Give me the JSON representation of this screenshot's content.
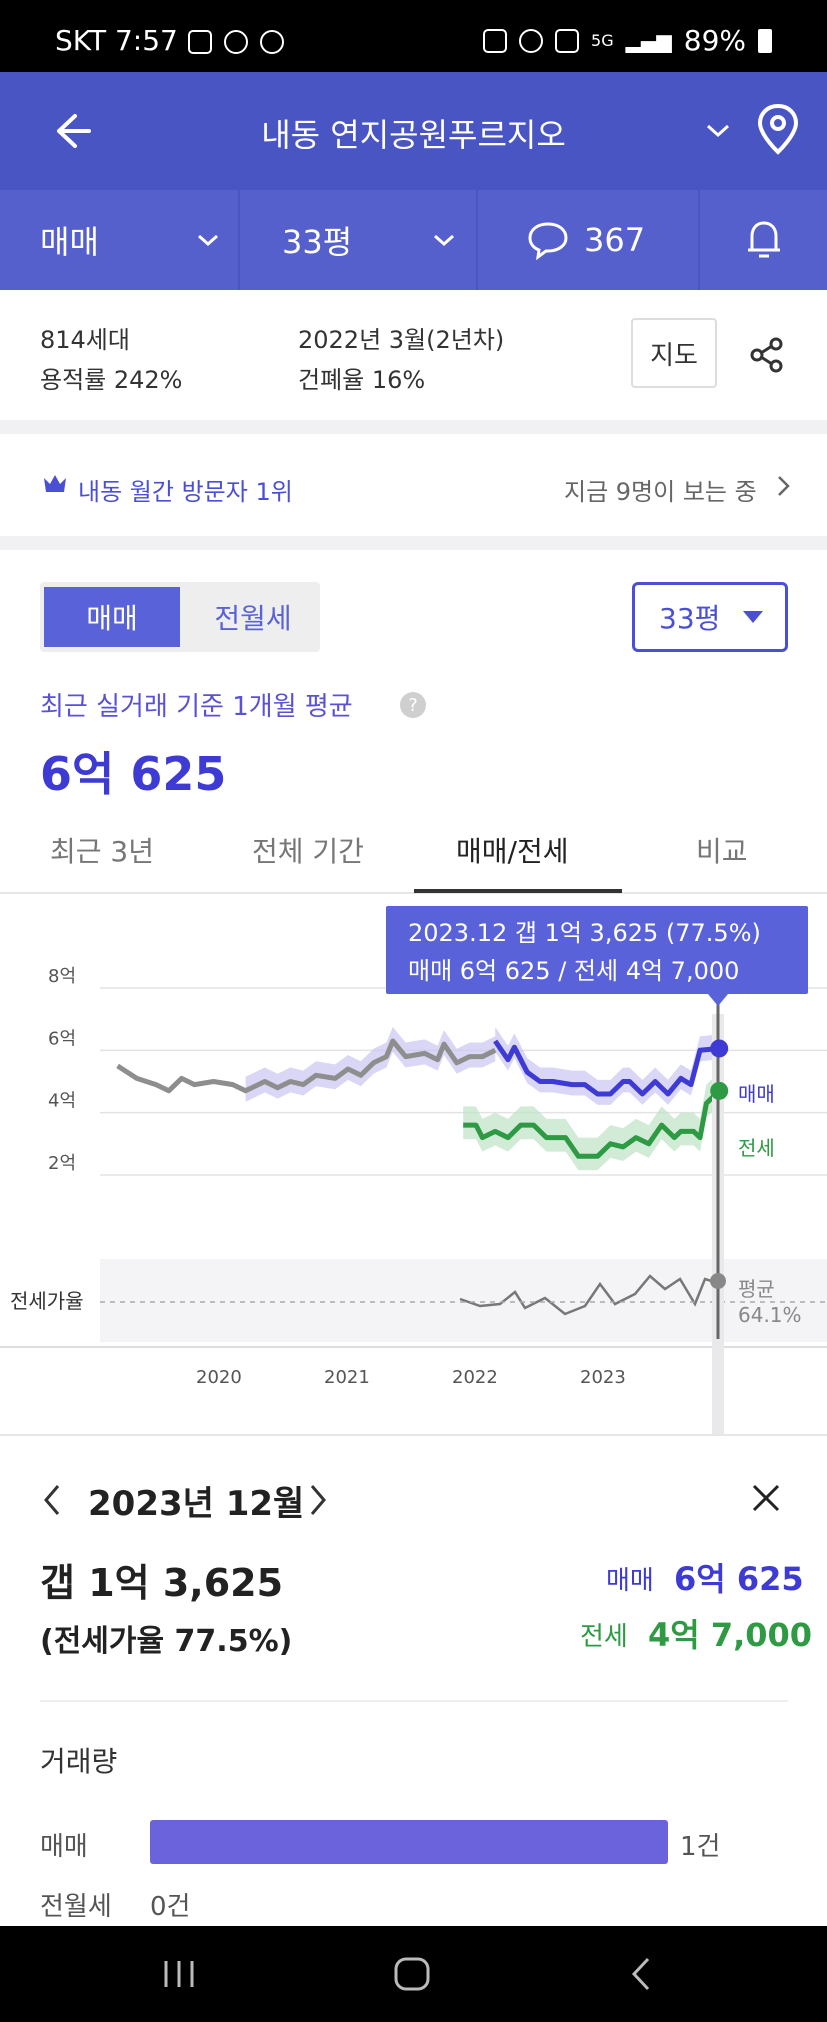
{
  "status_bar": {
    "carrier_time": "SKT 7:57",
    "battery": "89%"
  },
  "header": {
    "title": "내동 연지공원푸르지오"
  },
  "subheader": {
    "deal_type": "매매",
    "size": "33평",
    "comment_count": "367"
  },
  "info": {
    "households": "814세대",
    "far": "용적률 242%",
    "built": "2022년 3월(2년차)",
    "bcr": "건폐율 16%",
    "map_button": "지도"
  },
  "visitor": {
    "rank": "내동 월간 방문자 1위",
    "viewers": "지금 9명이 보는 중"
  },
  "toggle": {
    "sale": "매매",
    "rent": "전월세"
  },
  "size_select": "33평",
  "average": {
    "label": "최근 실거래 기준 1개월 평균",
    "value": "6억 625"
  },
  "tabs": [
    {
      "label": "최근 3년"
    },
    {
      "label": "전체 기간"
    },
    {
      "label": "매매/전세"
    },
    {
      "label": "비교"
    }
  ],
  "tooltip": {
    "line1": "2023.12  갭 1억 3,625 (77.5%)",
    "line2": "매매 6억 625 / 전세 4억 7,000"
  },
  "chart_data": {
    "type": "line",
    "y_ticks": [
      "8억",
      "6억",
      "4억",
      "2억"
    ],
    "x_ticks": [
      "2020",
      "2021",
      "2022",
      "2023"
    ],
    "ratio_label": "전세가율",
    "ylim": [
      0,
      8
    ],
    "series": [
      {
        "name": "매매",
        "color": "#3d3bd3"
      },
      {
        "name": "전세",
        "color": "#2e9a44"
      },
      {
        "name": "평균",
        "color": "#888888",
        "value_label": "64.1%"
      }
    ],
    "sale_before_colors": [
      [
        2019.2,
        5.5
      ],
      [
        2019.35,
        5.1
      ],
      [
        2019.5,
        4.9
      ],
      [
        2019.6,
        4.7
      ],
      [
        2019.7,
        5.1
      ],
      [
        2019.8,
        4.9
      ],
      [
        2019.95,
        5.0
      ],
      [
        2020.1,
        4.9
      ],
      [
        2020.2,
        4.7
      ],
      [
        2020.35,
        5.0
      ],
      [
        2020.45,
        4.8
      ],
      [
        2020.55,
        5.0
      ],
      [
        2020.65,
        4.9
      ],
      [
        2020.75,
        5.2
      ],
      [
        2020.9,
        5.1
      ],
      [
        2021.0,
        5.4
      ],
      [
        2021.1,
        5.2
      ],
      [
        2021.2,
        5.6
      ],
      [
        2021.3,
        5.8
      ],
      [
        2021.35,
        6.3
      ],
      [
        2021.45,
        5.8
      ],
      [
        2021.6,
        5.9
      ],
      [
        2021.7,
        5.7
      ],
      [
        2021.75,
        6.2
      ],
      [
        2021.85,
        5.6
      ],
      [
        2021.95,
        5.8
      ],
      [
        2022.05,
        5.8
      ],
      [
        2022.15,
        6.0
      ]
    ],
    "sale": [
      [
        2022.15,
        6.3
      ],
      [
        2022.25,
        5.7
      ],
      [
        2022.3,
        6.1
      ],
      [
        2022.4,
        5.3
      ],
      [
        2022.5,
        5.0
      ],
      [
        2022.6,
        5.0
      ],
      [
        2022.75,
        4.9
      ],
      [
        2022.85,
        4.9
      ],
      [
        2022.95,
        4.6
      ],
      [
        2023.05,
        4.6
      ],
      [
        2023.15,
        5.0
      ],
      [
        2023.2,
        5.0
      ],
      [
        2023.3,
        4.6
      ],
      [
        2023.4,
        5.0
      ],
      [
        2023.5,
        4.6
      ],
      [
        2023.6,
        5.1
      ],
      [
        2023.68,
        4.9
      ],
      [
        2023.75,
        6.0
      ],
      [
        2023.9,
        6.06
      ]
    ],
    "jeonse": [
      [
        2021.9,
        3.6
      ],
      [
        2022.0,
        3.6
      ],
      [
        2022.05,
        3.2
      ],
      [
        2022.15,
        3.4
      ],
      [
        2022.25,
        3.2
      ],
      [
        2022.35,
        3.6
      ],
      [
        2022.45,
        3.6
      ],
      [
        2022.55,
        3.2
      ],
      [
        2022.7,
        3.2
      ],
      [
        2022.8,
        2.6
      ],
      [
        2022.95,
        2.6
      ],
      [
        2023.05,
        3.0
      ],
      [
        2023.15,
        2.9
      ],
      [
        2023.25,
        3.2
      ],
      [
        2023.35,
        3.0
      ],
      [
        2023.45,
        3.6
      ],
      [
        2023.55,
        3.2
      ],
      [
        2023.6,
        3.4
      ],
      [
        2023.7,
        3.4
      ],
      [
        2023.75,
        3.2
      ],
      [
        2023.8,
        4.3
      ],
      [
        2023.9,
        4.7
      ]
    ]
  },
  "detail": {
    "month": "2023년 12월",
    "gap": "갭 1억 3,625",
    "ratio": "(전세가율 77.5%)",
    "sale_label": "매매",
    "sale_value": "6억 625",
    "jeonse_label": "전세",
    "jeonse_value": "4억 7,000",
    "volume_title": "거래량",
    "volume": [
      {
        "label": "매매",
        "count": "1건",
        "fraction": 1.0
      },
      {
        "label": "전월세",
        "count": "0건",
        "fraction": 0.0
      }
    ]
  },
  "colors": {
    "primary": "#4a55c4",
    "accent": "#3d3bd3",
    "green": "#2e9a44"
  }
}
